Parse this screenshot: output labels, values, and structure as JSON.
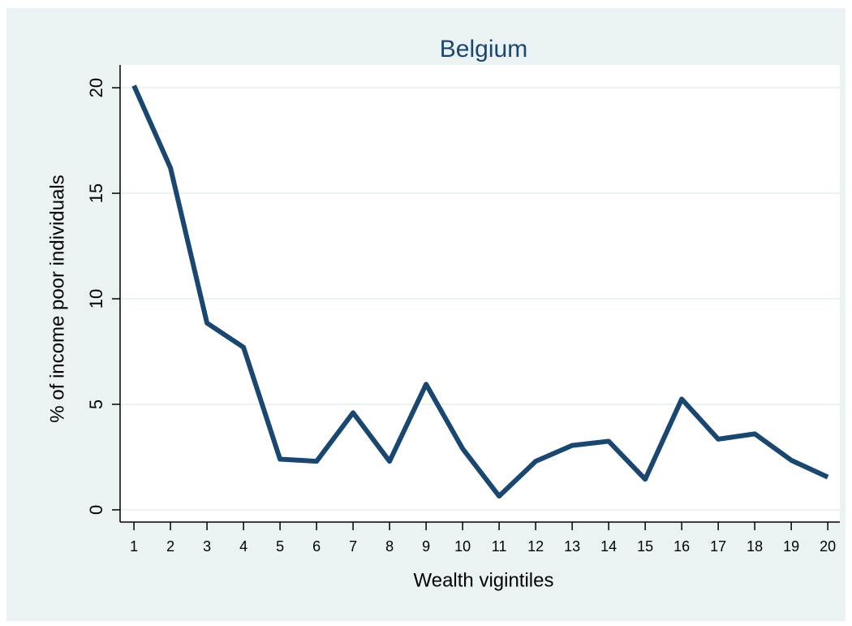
{
  "chart_data": {
    "type": "line",
    "title": "Belgium",
    "x_label": "Wealth vigintiles",
    "y_label": "% of income poor individuals",
    "x": [
      1,
      2,
      3,
      4,
      5,
      6,
      7,
      8,
      9,
      10,
      11,
      12,
      13,
      14,
      15,
      16,
      17,
      18,
      19,
      20
    ],
    "values": [
      20.1,
      16.2,
      8.85,
      7.7,
      2.4,
      2.3,
      4.6,
      2.3,
      5.95,
      2.9,
      0.65,
      2.3,
      3.05,
      3.25,
      1.45,
      5.25,
      3.35,
      3.6,
      2.35,
      1.55
    ],
    "color": "#1a476f",
    "xlim": [
      0.62,
      20.33
    ],
    "xticks": [
      1,
      2,
      3,
      4,
      5,
      6,
      7,
      8,
      9,
      10,
      11,
      12,
      13,
      14,
      15,
      16,
      17,
      18,
      19,
      20
    ],
    "ylim": [
      -0.58,
      21.08
    ],
    "yticks": [
      0,
      5,
      10,
      15,
      20
    ],
    "grid": true
  }
}
